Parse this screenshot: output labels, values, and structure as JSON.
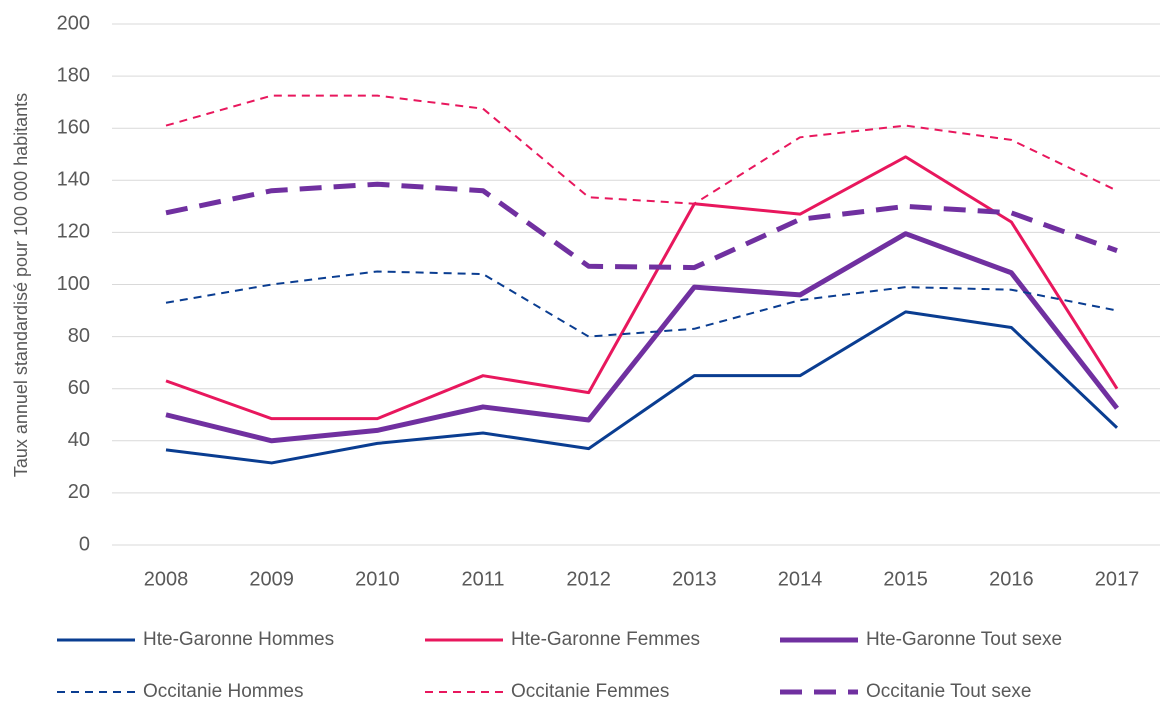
{
  "chart_data": {
    "type": "line",
    "y_label": "Taux annuel standardisé pour 100 000 habitants",
    "categories": [
      "2008",
      "2009",
      "2010",
      "2011",
      "2012",
      "2013",
      "2014",
      "2015",
      "2016",
      "2017"
    ],
    "series": [
      {
        "name": "Hte-Garonne Hommes",
        "color": "#0a3d91",
        "line_style": "solid",
        "thick": false,
        "values": [
          36.5,
          31.5,
          39,
          43,
          37,
          65,
          65,
          89.5,
          83.5,
          45
        ]
      },
      {
        "name": "Hte-Garonne Femmes",
        "color": "#e8175d",
        "line_style": "solid",
        "thick": false,
        "values": [
          63,
          48.5,
          48.5,
          65,
          58.5,
          131,
          127,
          149,
          124,
          60
        ]
      },
      {
        "name": "Hte-Garonne Tout sexe",
        "color": "#7030a0",
        "line_style": "solid",
        "thick": true,
        "values": [
          50,
          40,
          44,
          53,
          48,
          99,
          96,
          119.5,
          104.5,
          52.5
        ]
      },
      {
        "name": "Occitanie Hommes",
        "color": "#0a3d91",
        "line_style": "dashed",
        "thick": false,
        "values": [
          93,
          100,
          105,
          104,
          80,
          83,
          94,
          99,
          98,
          90
        ]
      },
      {
        "name": "Occitanie Femmes",
        "color": "#e8175d",
        "line_style": "dashed",
        "thick": false,
        "values": [
          161,
          172.5,
          172.5,
          167.5,
          133.5,
          131,
          156.5,
          161,
          155.5,
          136
        ]
      },
      {
        "name": "Occitanie Tout sexe",
        "color": "#7030a0",
        "line_style": "dashed",
        "thick": true,
        "values": [
          127.5,
          136,
          138.5,
          136,
          107,
          106.5,
          125,
          130,
          127.5,
          113
        ]
      }
    ],
    "ylim": [
      0,
      200
    ],
    "yticks": [
      0,
      20,
      40,
      60,
      80,
      100,
      120,
      140,
      160,
      180,
      200
    ],
    "grid": true
  }
}
